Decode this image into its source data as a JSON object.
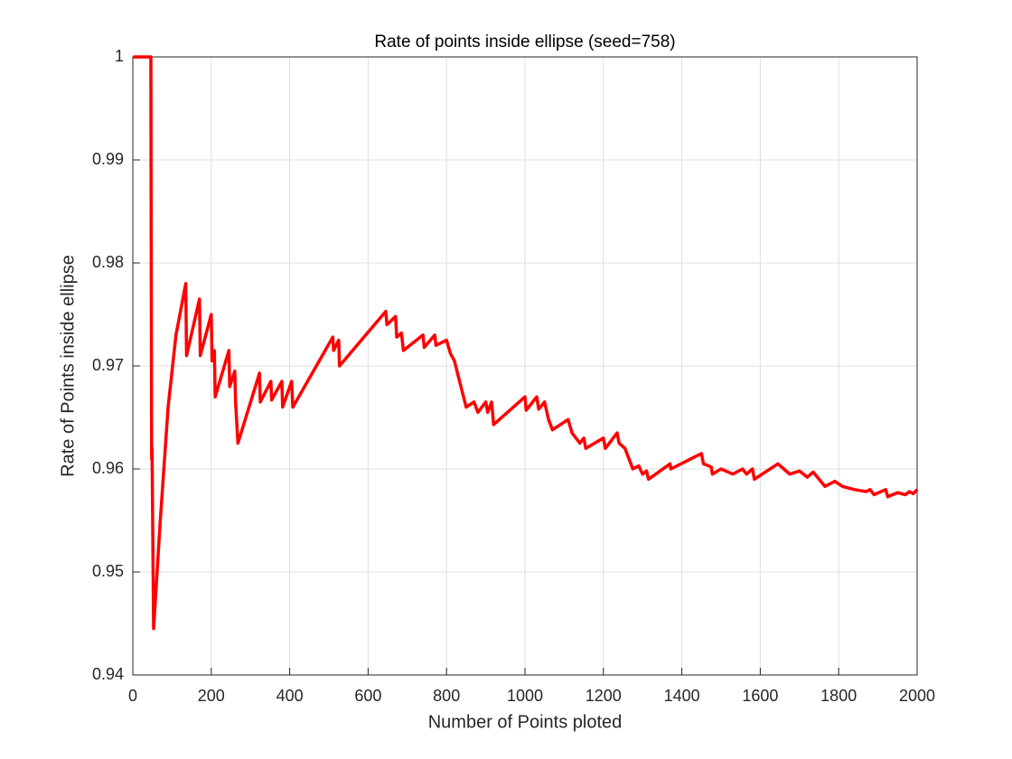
{
  "chart_data": {
    "type": "line",
    "title": "Rate of points inside ellipse (seed=758)",
    "xlabel": "Number of Points ploted",
    "ylabel": "Rate of Points inside ellipse",
    "xlim": [
      0,
      2000
    ],
    "ylim": [
      0.94,
      1
    ],
    "xticks": [
      0,
      200,
      400,
      600,
      800,
      1000,
      1200,
      1400,
      1600,
      1800,
      2000
    ],
    "yticks": [
      0.94,
      0.95,
      0.96,
      0.97,
      0.98,
      0.99,
      1
    ],
    "grid": true,
    "series": [
      {
        "color": "#ff0000",
        "x": [
          1,
          46,
          47,
          48,
          49,
          51,
          53,
          70,
          90,
          110,
          135,
          137,
          170,
          172,
          200,
          202,
          208,
          210,
          245,
          247,
          260,
          262,
          268,
          323,
          325,
          352,
          354,
          380,
          382,
          405,
          408,
          510,
          512,
          525,
          527,
          645,
          648,
          670,
          673,
          685,
          690,
          740,
          743,
          770,
          773,
          800,
          810,
          820,
          830,
          840,
          850,
          870,
          880,
          900,
          905,
          915,
          920,
          1000,
          1003,
          1030,
          1035,
          1050,
          1060,
          1070,
          1110,
          1120,
          1140,
          1150,
          1155,
          1200,
          1205,
          1235,
          1240,
          1255,
          1265,
          1275,
          1290,
          1300,
          1310,
          1315,
          1370,
          1372,
          1450,
          1455,
          1475,
          1478,
          1500,
          1530,
          1555,
          1565,
          1580,
          1585,
          1645,
          1660,
          1675,
          1700,
          1720,
          1735,
          1750,
          1765,
          1790,
          1810,
          1840,
          1870,
          1880,
          1890,
          1920,
          1925,
          1950,
          1970,
          1980,
          1990,
          2000
        ],
        "values": [
          1,
          1,
          0.979,
          0.961,
          0.962,
          0.953,
          0.9445,
          0.955,
          0.966,
          0.973,
          0.978,
          0.971,
          0.9765,
          0.971,
          0.975,
          0.9705,
          0.9715,
          0.967,
          0.9715,
          0.968,
          0.9695,
          0.9665,
          0.9625,
          0.9693,
          0.9665,
          0.9685,
          0.9667,
          0.9685,
          0.966,
          0.9685,
          0.966,
          0.9728,
          0.9715,
          0.9725,
          0.97,
          0.9753,
          0.974,
          0.9748,
          0.9728,
          0.9732,
          0.9715,
          0.973,
          0.9718,
          0.973,
          0.972,
          0.9725,
          0.9712,
          0.9705,
          0.969,
          0.9675,
          0.966,
          0.9665,
          0.9655,
          0.9665,
          0.9655,
          0.9665,
          0.9643,
          0.967,
          0.9657,
          0.967,
          0.9658,
          0.9665,
          0.9648,
          0.9638,
          0.9648,
          0.9635,
          0.9625,
          0.963,
          0.962,
          0.963,
          0.962,
          0.9635,
          0.9625,
          0.962,
          0.961,
          0.96,
          0.9603,
          0.9595,
          0.9598,
          0.959,
          0.9605,
          0.96,
          0.9615,
          0.9605,
          0.9602,
          0.9595,
          0.96,
          0.9595,
          0.96,
          0.9595,
          0.96,
          0.959,
          0.9605,
          0.96,
          0.9595,
          0.9598,
          0.9592,
          0.9597,
          0.959,
          0.9583,
          0.9588,
          0.9583,
          0.958,
          0.9578,
          0.958,
          0.9575,
          0.958,
          0.9573,
          0.9577,
          0.9575,
          0.9578,
          0.9576,
          0.958
        ]
      }
    ]
  }
}
